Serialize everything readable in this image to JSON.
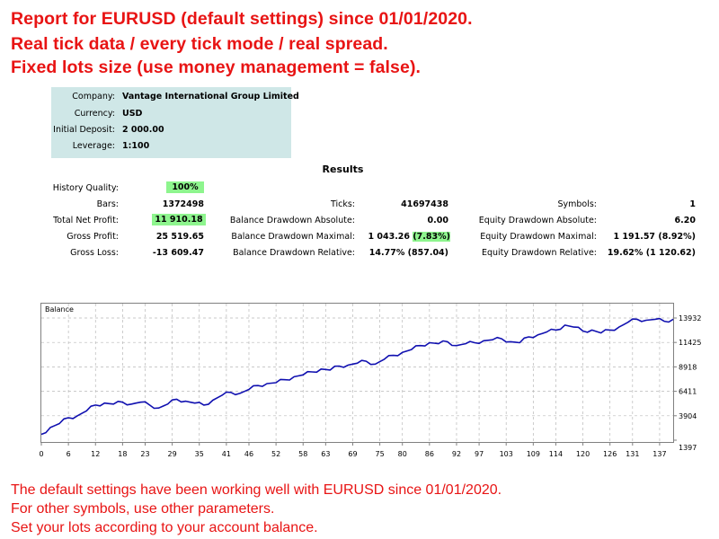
{
  "headlines": [
    "Report for EURUSD (default settings) since 01/01/2020.",
    "Real tick data / every tick mode / real spread.",
    "Fixed lots size (use money management = false)."
  ],
  "info": {
    "company_label": "Company:",
    "company_value": "Vantage International Group Limited",
    "currency_label": "Currency:",
    "currency_value": "USD",
    "deposit_label": "Initial Deposit:",
    "deposit_value": "2 000.00",
    "leverage_label": "Leverage:",
    "leverage_value": "1:100"
  },
  "results": {
    "title": "Results",
    "history_quality_label": "History Quality:",
    "history_quality_value": "100%",
    "bars_label": "Bars:",
    "bars_value": "1372498",
    "net_profit_label": "Total Net Profit:",
    "net_profit_value": "11 910.18",
    "gross_profit_label": "Gross Profit:",
    "gross_profit_value": "25 519.65",
    "gross_loss_label": "Gross Loss:",
    "gross_loss_value": "-13 609.47",
    "ticks_label": "Ticks:",
    "ticks_value": "41697438",
    "bal_dd_abs_label": "Balance Drawdown Absolute:",
    "bal_dd_abs_value": "0.00",
    "bal_dd_max_label": "Balance Drawdown Maximal:",
    "bal_dd_max_value": "1 043.26 (7.83%)",
    "bal_dd_rel_label": "Balance Drawdown Relative:",
    "bal_dd_rel_value": "14.77% (857.04)",
    "symbols_label": "Symbols:",
    "symbols_value": "1",
    "eq_dd_abs_label": "Equity Drawdown Absolute:",
    "eq_dd_abs_value": "6.20",
    "eq_dd_max_label": "Equity Drawdown Maximal:",
    "eq_dd_max_value": "1 191.57 (8.92%)",
    "eq_dd_rel_label": "Equity Drawdown Relative:",
    "eq_dd_rel_value": "19.62% (1 120.62)"
  },
  "footer": [
    "The default settings have been working well with EURUSD since 01/01/2020.",
    "For other symbols, use other parameters.",
    "Set your lots according to your account balance."
  ],
  "colors": {
    "headline": "#e81414",
    "highlight": "#8ef58e",
    "info_bg": "#cfe7e7",
    "balance_line": "#1010b0"
  },
  "chart_data": {
    "type": "line",
    "legend": "Balance",
    "xlim": [
      0,
      140
    ],
    "ylim": [
      1397,
      13932
    ],
    "x_ticks": [
      0,
      6,
      12,
      18,
      23,
      29,
      35,
      41,
      46,
      52,
      58,
      63,
      69,
      75,
      80,
      86,
      92,
      97,
      103,
      109,
      114,
      120,
      126,
      131,
      137
    ],
    "y_ticks": [
      1397,
      3904,
      6411,
      8918,
      11425,
      13932
    ],
    "grid": true,
    "series": [
      {
        "name": "Balance",
        "x": [
          0,
          2,
          4,
          6,
          8,
          10,
          12,
          14,
          16,
          18,
          20,
          22,
          24,
          26,
          28,
          30,
          32,
          34,
          36,
          38,
          40,
          42,
          44,
          46,
          48,
          50,
          52,
          54,
          56,
          58,
          60,
          62,
          64,
          66,
          68,
          70,
          72,
          74,
          76,
          78,
          80,
          82,
          84,
          86,
          88,
          90,
          92,
          94,
          96,
          98,
          100,
          102,
          104,
          106,
          108,
          110,
          112,
          114,
          116,
          118,
          120,
          122,
          124,
          126,
          128,
          130,
          132,
          134,
          136,
          138,
          140
        ],
        "y": [
          2000,
          2700,
          3100,
          3700,
          3900,
          4400,
          5000,
          5200,
          5100,
          5300,
          5100,
          5300,
          5000,
          4700,
          5100,
          5600,
          5400,
          5200,
          5000,
          5500,
          6000,
          6300,
          6200,
          6600,
          7000,
          7200,
          7300,
          7600,
          7900,
          8100,
          8400,
          8700,
          8600,
          9000,
          9100,
          9300,
          9500,
          9200,
          9700,
          10100,
          10400,
          10700,
          11100,
          11400,
          11300,
          11500,
          11100,
          11300,
          11400,
          11600,
          11700,
          11800,
          11500,
          11400,
          12000,
          12200,
          12500,
          12700,
          13200,
          13000,
          12600,
          12700,
          12400,
          12700,
          13000,
          13500,
          13800,
          13700,
          13800,
          13600,
          13800
        ]
      }
    ]
  }
}
